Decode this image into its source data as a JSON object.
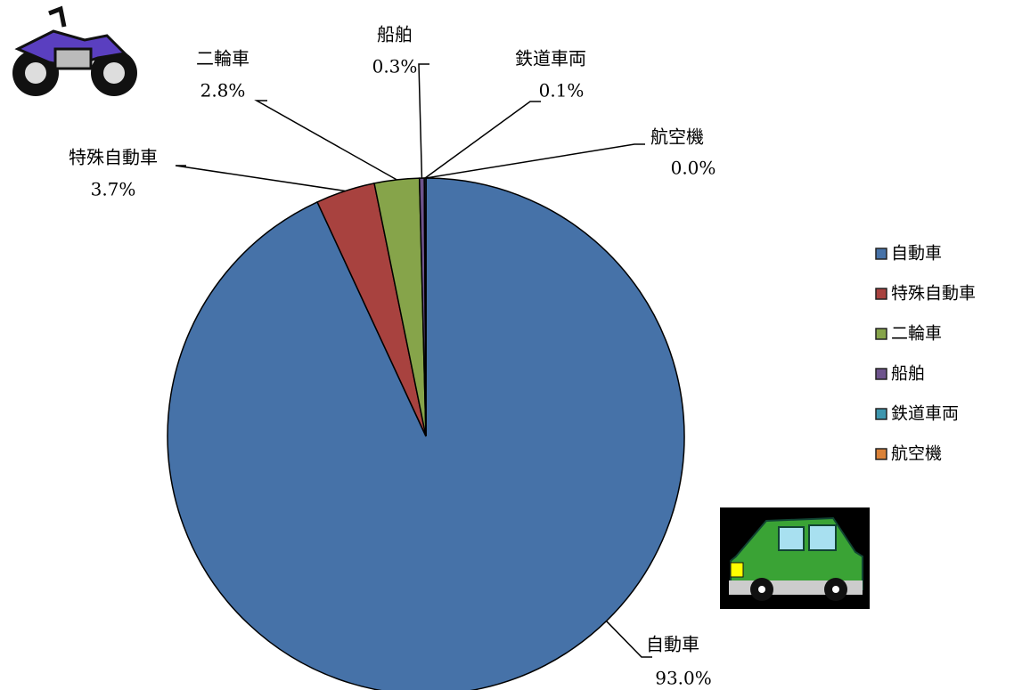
{
  "chart_data": {
    "type": "pie",
    "categories": [
      "自動車",
      "特殊自動車",
      "二輪車",
      "船舶",
      "鉄道車両",
      "航空機"
    ],
    "values": [
      93.0,
      3.7,
      2.8,
      0.3,
      0.1,
      0.0
    ],
    "value_labels": [
      "93.0%",
      "3.7%",
      "2.8%",
      "0.3%",
      "0.1%",
      "0.0%"
    ],
    "colors": [
      "#4672a8",
      "#a8423f",
      "#86a44a",
      "#6e548d",
      "#3d96ae",
      "#da8137"
    ],
    "legend": "right"
  }
}
